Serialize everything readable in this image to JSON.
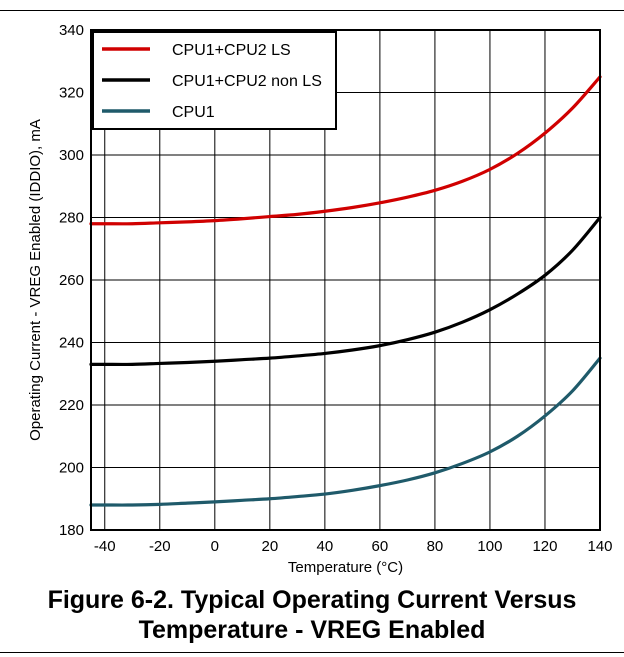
{
  "figure_caption": {
    "line1": "Figure 6-2. Typical Operating Current Versus",
    "line2": "Temperature - VREG Enabled"
  },
  "colors": {
    "cpu1_cpu2_ls": "#d00000",
    "cpu1_cpu2_non_ls": "#000000",
    "cpu1": "#1f5a6a",
    "grid": "#000000"
  },
  "chart_data": {
    "type": "line",
    "title": "",
    "xlabel": "Temperature (°C)",
    "ylabel": "Operating Current - VREG Enabled (IDDIO), mA",
    "xlim": [
      -45,
      140
    ],
    "ylim": [
      180,
      340
    ],
    "x_ticks": [
      -40,
      -20,
      0,
      20,
      40,
      60,
      80,
      100,
      120,
      140
    ],
    "y_ticks": [
      180,
      200,
      220,
      240,
      260,
      280,
      300,
      320,
      340
    ],
    "grid": true,
    "legend_position": "top-left",
    "x": [
      -45,
      -40,
      -30,
      -20,
      -10,
      0,
      10,
      20,
      30,
      40,
      50,
      60,
      70,
      80,
      90,
      100,
      110,
      120,
      130,
      140
    ],
    "series": [
      {
        "name": "CPU1+CPU2 LS",
        "color_key": "cpu1_cpu2_ls",
        "values": [
          278,
          278,
          278,
          278.3,
          278.6,
          279,
          279.6,
          280.3,
          281,
          282,
          283.2,
          284.7,
          286.5,
          288.7,
          291.6,
          295.4,
          300.5,
          307,
          315,
          325
        ]
      },
      {
        "name": "CPU1+CPU2 non LS",
        "color_key": "cpu1_cpu2_non_ls",
        "values": [
          233,
          233,
          233,
          233.3,
          233.6,
          234,
          234.5,
          235,
          235.7,
          236.5,
          237.6,
          239,
          240.9,
          243.3,
          246.5,
          250.5,
          255.5,
          261.5,
          269.5,
          280
        ]
      },
      {
        "name": "CPU1",
        "color_key": "cpu1",
        "values": [
          188,
          188,
          188,
          188.2,
          188.6,
          189,
          189.5,
          190,
          190.7,
          191.5,
          192.7,
          194.2,
          196,
          198.3,
          201.3,
          205,
          210,
          216.5,
          224.5,
          235
        ]
      }
    ]
  }
}
